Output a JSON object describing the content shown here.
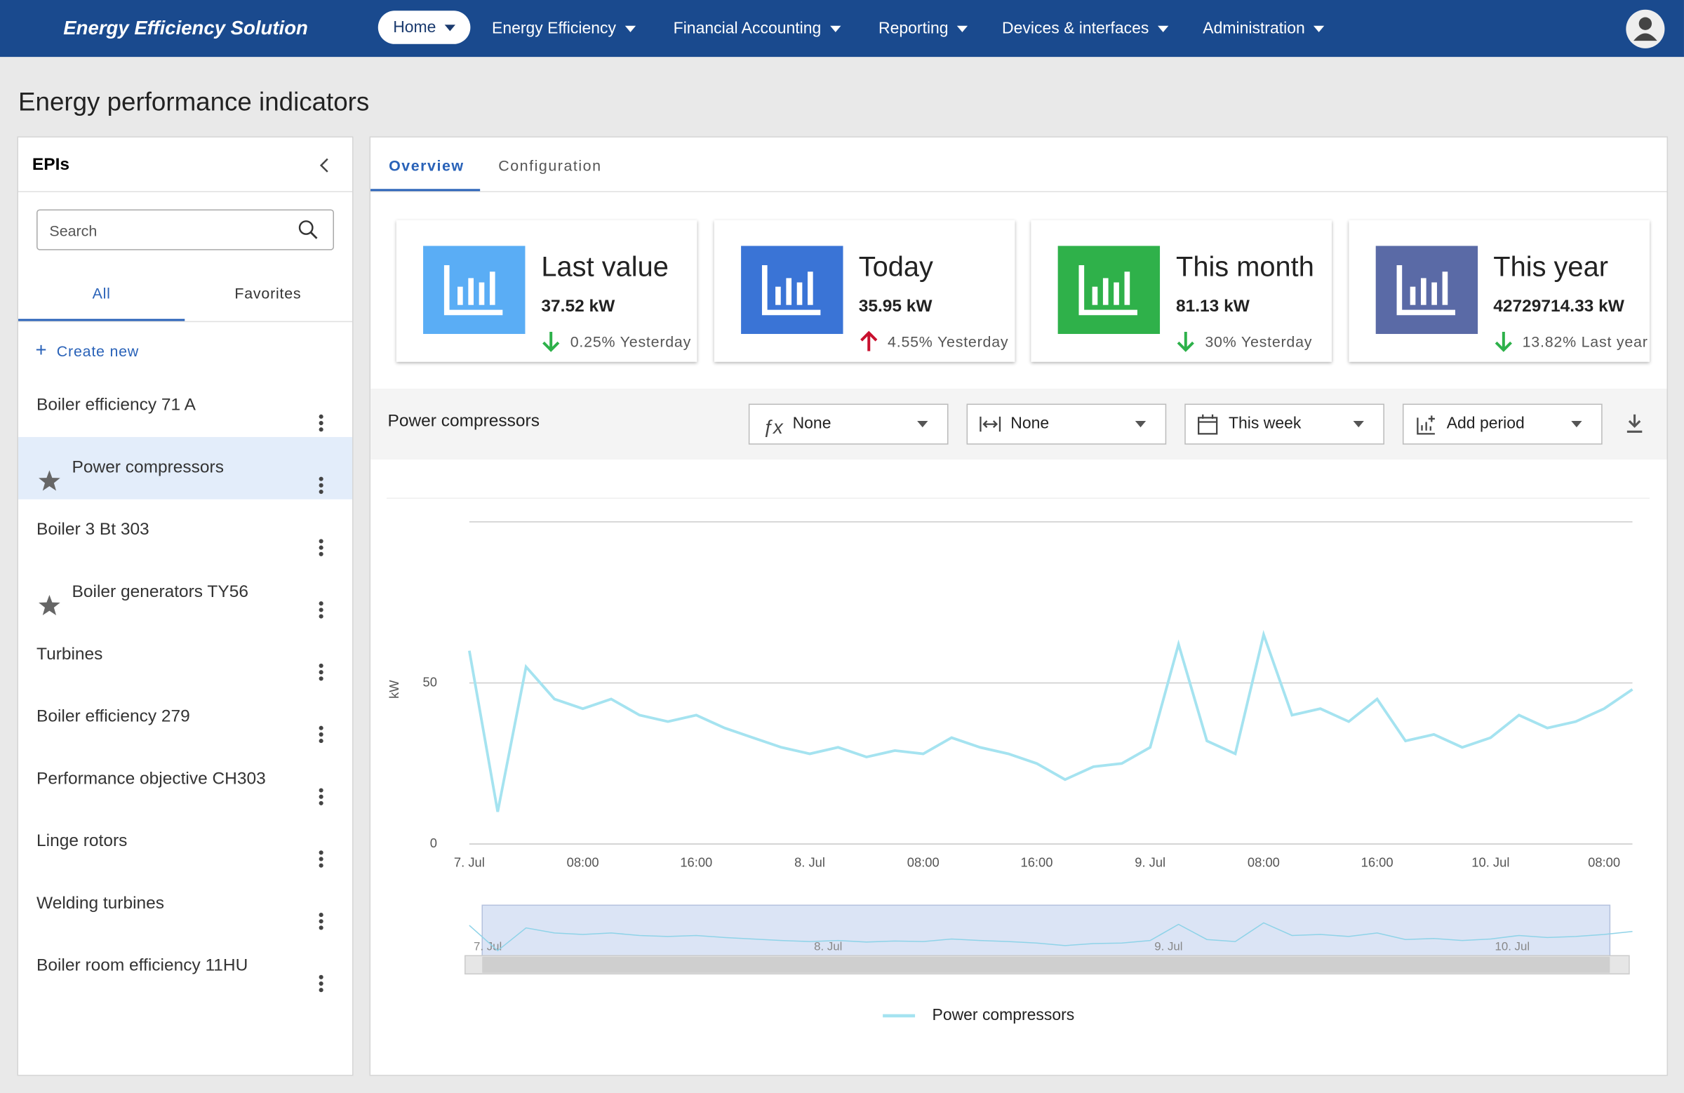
{
  "app_title": "Energy Efficiency Solution",
  "nav": [
    "Home",
    "Energy Efficiency",
    "Financial Accounting",
    "Reporting",
    "Devices & interfaces",
    "Administration"
  ],
  "page_title": "Energy performance indicators",
  "sidebar": {
    "title": "EPIs",
    "search_placeholder": "Search",
    "tabs": [
      "All",
      "Favorites"
    ],
    "create": "Create new",
    "items": [
      {
        "label": "Boiler efficiency 71 A",
        "favorite": false
      },
      {
        "label": "Power compressors",
        "favorite": true,
        "selected": true
      },
      {
        "label": "Boiler 3 Bt 303",
        "favorite": false
      },
      {
        "label": "Boiler generators TY56",
        "favorite": true
      },
      {
        "label": "Turbines",
        "favorite": false
      },
      {
        "label": "Boiler efficiency 279",
        "favorite": false
      },
      {
        "label": "Performance objective CH303",
        "favorite": false
      },
      {
        "label": "Linge rotors",
        "favorite": false
      },
      {
        "label": "Welding turbines",
        "favorite": false
      },
      {
        "label": "Boiler room efficiency 11HU",
        "favorite": false
      }
    ]
  },
  "tabs": [
    "Overview",
    "Configuration"
  ],
  "kpis": [
    {
      "title": "Last value",
      "value": "37.52 kW",
      "change": "0.25% Yesterday",
      "direction": "down",
      "color": "#5aadf5"
    },
    {
      "title": "Today",
      "value": "35.95 kW",
      "change": "4.55% Yesterday",
      "direction": "up",
      "color": "#3a74d6"
    },
    {
      "title": "This month",
      "value": "81.13 kW",
      "change": "30% Yesterday",
      "direction": "down",
      "color": "#2fb14a"
    },
    {
      "title": "This year",
      "value": "42729714.33 kW",
      "change": "13.82% Last year",
      "direction": "down",
      "color": "#5a6aa6"
    }
  ],
  "chart_header": {
    "title": "Power compressors",
    "controls": [
      "None",
      "None",
      "This week",
      "Add period"
    ]
  },
  "chart_data": {
    "type": "line",
    "y_label": "kW",
    "categories": [
      "7. Jul",
      null,
      null,
      null,
      "08:00",
      null,
      null,
      null,
      "16:00",
      null,
      null,
      null,
      "8. Jul",
      null,
      null,
      null,
      "08:00",
      null,
      null,
      null,
      "16:00",
      null,
      null,
      null,
      "9. Jul",
      null,
      null,
      null,
      "08:00",
      null,
      null,
      null,
      "16:00",
      null,
      null,
      null,
      "10. Jul",
      null,
      null,
      null,
      "08:00",
      null
    ],
    "series": [
      {
        "name": "Power compressors",
        "color": "#a5e3f0",
        "values": [
          60,
          10,
          55,
          45,
          42,
          45,
          40,
          38,
          40,
          36,
          33,
          30,
          28,
          30,
          27,
          29,
          28,
          33,
          30,
          28,
          25,
          20,
          24,
          25,
          30,
          62,
          32,
          28,
          65,
          40,
          42,
          38,
          45,
          32,
          34,
          30,
          33,
          40,
          36,
          38,
          42,
          48
        ]
      }
    ],
    "ylim": [
      0,
      100
    ],
    "yticks": [
      0,
      50
    ],
    "grid": true,
    "legend": "bottom"
  }
}
